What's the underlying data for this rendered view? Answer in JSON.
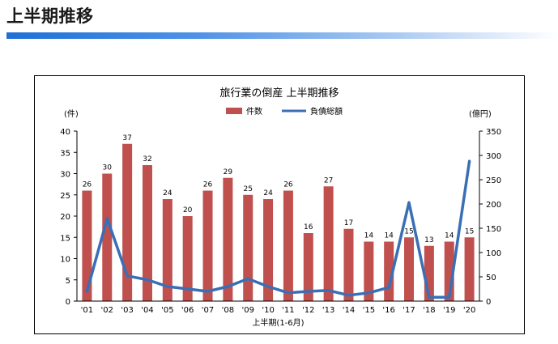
{
  "page": {
    "title": "上半期推移"
  },
  "chart_data": {
    "type": "bar",
    "title": "旅行業の倒産 上半期推移",
    "xlabel": "上半期(1-6月)",
    "ylabel_left": "(件)",
    "ylabel_right": "(億円)",
    "categories": [
      "'01",
      "'02",
      "'03",
      "'04",
      "'05",
      "'06",
      "'07",
      "'08",
      "'09",
      "'10",
      "'11",
      "'12",
      "'13",
      "'14",
      "'15",
      "'16",
      "'17",
      "'18",
      "'19",
      "'20"
    ],
    "left_ticks": [
      "0",
      "5",
      "10",
      "15",
      "20",
      "25",
      "30",
      "35",
      "40"
    ],
    "right_ticks": [
      "0",
      "50",
      "100",
      "150",
      "200",
      "250",
      "300",
      "350"
    ],
    "ylim_left": [
      0,
      40
    ],
    "ylim_right": [
      0,
      350
    ],
    "legend_position": "top-center",
    "series": [
      {
        "name": "件数",
        "type": "bar",
        "axis": "left",
        "color": "#c0504d",
        "values": [
          26,
          30,
          37,
          32,
          24,
          20,
          26,
          29,
          25,
          24,
          26,
          16,
          27,
          17,
          14,
          14,
          15,
          13,
          14,
          15
        ],
        "labels": [
          "26",
          "30",
          "37",
          "32",
          "24",
          "20",
          "26",
          "29",
          "25",
          "24",
          "26",
          "16",
          "27",
          "17",
          "14",
          "14",
          "15",
          "13",
          "14",
          "15"
        ]
      },
      {
        "name": "負債総額",
        "type": "line",
        "axis": "right",
        "color": "#3a6fb5",
        "values": [
          20,
          170,
          52,
          44,
          30,
          25,
          20,
          30,
          46,
          30,
          17,
          20,
          22,
          12,
          17,
          28,
          203,
          8,
          8,
          288
        ]
      }
    ]
  }
}
